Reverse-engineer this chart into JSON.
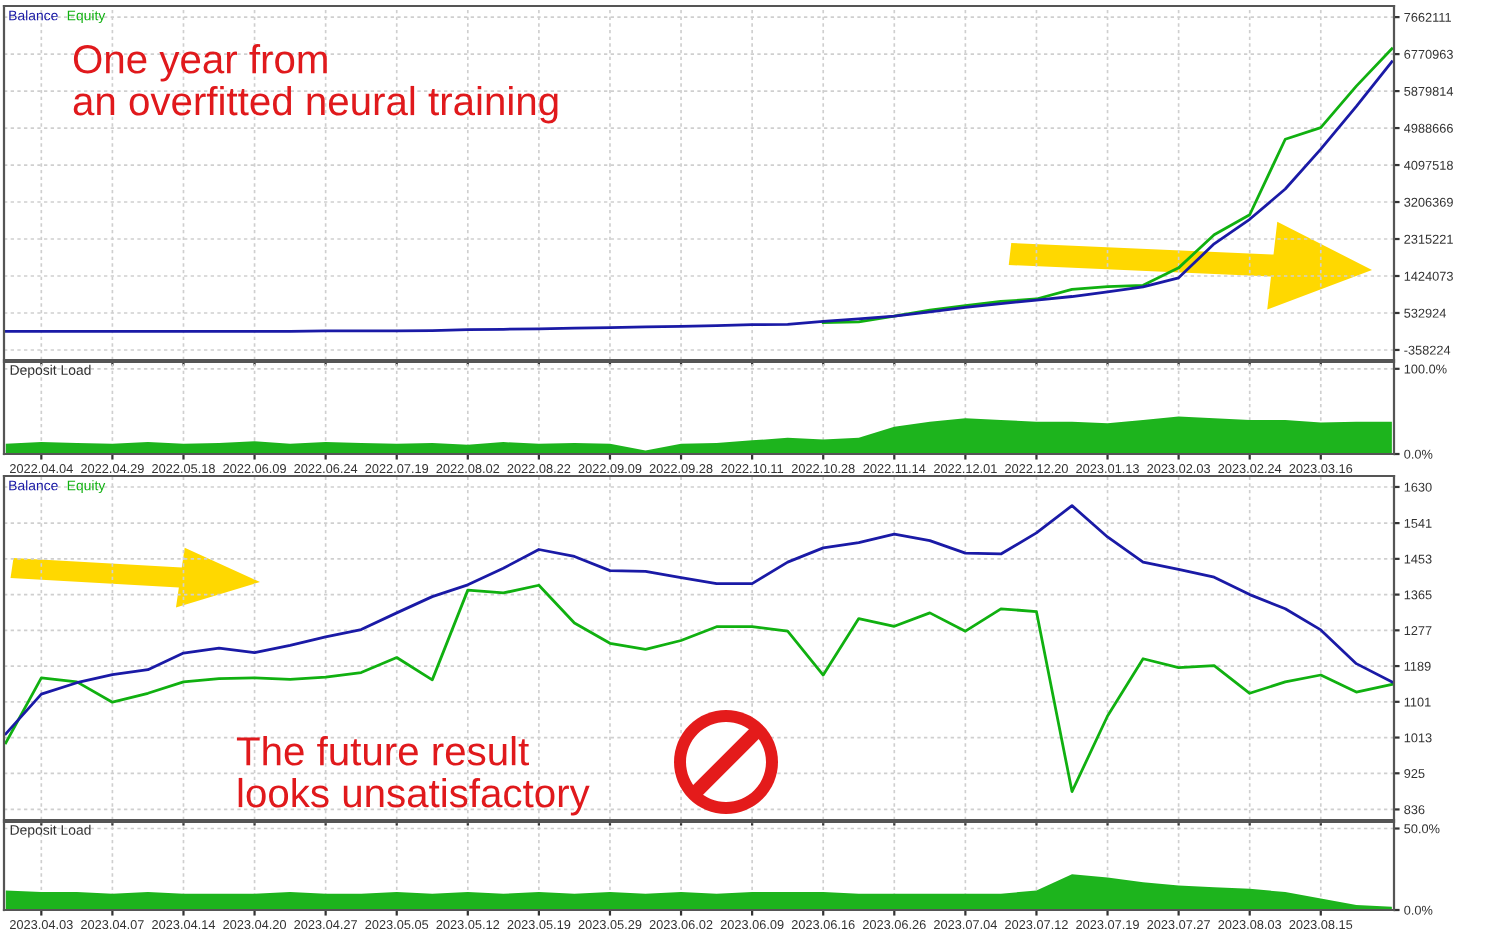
{
  "chart_data": [
    {
      "type": "line",
      "legend": "top left",
      "grid": true,
      "tick_labels": "y",
      "annotations": [
        "One year from\nan overfitted neural training"
      ],
      "categories": [
        null,
        "2022.04.04",
        null,
        "2022.04.29",
        null,
        "2022.05.18",
        null,
        "2022.06.09",
        null,
        "2022.06.24",
        null,
        "2022.07.19",
        null,
        "2022.08.02",
        null,
        "2022.08.22",
        null,
        "2022.09.09",
        null,
        "2022.09.28",
        null,
        "2022.10.11",
        null,
        "2022.10.28",
        null,
        "2022.11.14",
        null,
        "2022.12.01",
        null,
        "2022.12.20",
        null,
        "2023.01.13",
        null,
        "2023.02.03",
        null,
        "2023.02.24",
        null,
        "2023.03.16",
        null,
        null
      ],
      "ylim": [
        -600000,
        7930000
      ],
      "yticks": [
        -358224,
        532924,
        1424073,
        2315221,
        3206369,
        4097518,
        4988666,
        5879814,
        6770963,
        7662111
      ],
      "series": [
        {
          "name": "Equity",
          "color": "#10b010",
          "values": [
            null,
            null,
            null,
            null,
            null,
            null,
            null,
            null,
            null,
            null,
            null,
            null,
            null,
            null,
            null,
            null,
            null,
            null,
            null,
            null,
            null,
            null,
            null,
            300000,
            320000,
            460000,
            600000,
            710000,
            810000,
            870000,
            1100000,
            1170000,
            1200000,
            1620000,
            2420000,
            2900000,
            4720000,
            5000000,
            6000000,
            6900000
          ]
        },
        {
          "name": "Balance",
          "color": "#1a1aa6",
          "values": [
            90000,
            90000,
            90000,
            90000,
            90000,
            90000,
            90000,
            90000,
            90000,
            100000,
            100000,
            100000,
            110000,
            130000,
            140000,
            150000,
            170000,
            180000,
            200000,
            210000,
            230000,
            250000,
            260000,
            330000,
            390000,
            460000,
            560000,
            670000,
            760000,
            840000,
            930000,
            1040000,
            1160000,
            1380000,
            2200000,
            2790000,
            3520000,
            4480000,
            5510000,
            6590000
          ]
        }
      ]
    },
    {
      "type": "area",
      "title": "Deposit Load",
      "grid": true,
      "categories": [
        null,
        "2022.04.04",
        null,
        "2022.04.29",
        null,
        "2022.05.18",
        null,
        "2022.06.09",
        null,
        "2022.06.24",
        null,
        "2022.07.19",
        null,
        "2022.08.02",
        null,
        "2022.08.22",
        null,
        "2022.09.09",
        null,
        "2022.09.28",
        null,
        "2022.10.11",
        null,
        "2022.10.28",
        null,
        "2022.11.14",
        null,
        "2022.12.01",
        null,
        "2022.12.20",
        null,
        "2023.01.13",
        null,
        "2023.02.03",
        null,
        "2023.02.24",
        null,
        "2023.03.16",
        null,
        null
      ],
      "ylim": [
        0,
        108
      ],
      "yticks": [
        {
          "value": 0,
          "label": "0.0%"
        },
        {
          "value": 100,
          "label": "100.0%"
        }
      ],
      "series": [
        {
          "color": "#1db41d",
          "values": [
            12,
            14,
            13,
            12,
            14,
            12,
            13,
            15,
            12,
            14,
            13,
            12,
            13,
            11,
            14,
            12,
            13,
            12,
            4,
            12,
            13,
            16,
            19,
            17,
            19,
            32,
            38,
            42,
            40,
            38,
            38,
            36,
            40,
            44,
            42,
            40,
            40,
            37,
            38,
            38
          ]
        }
      ]
    },
    {
      "type": "line",
      "legend": "top left",
      "grid": true,
      "tick_labels": "y",
      "annotations": [
        "The future result\nlooks unsatisfactory"
      ],
      "categories": [
        null,
        "2023.04.03",
        null,
        "2023.04.07",
        null,
        "2023.04.14",
        null,
        "2023.04.20",
        null,
        "2023.04.27",
        null,
        "2023.05.05",
        null,
        "2023.05.12",
        null,
        "2023.05.19",
        null,
        "2023.05.29",
        null,
        "2023.06.02",
        null,
        "2023.06.09",
        null,
        "2023.06.16",
        null,
        "2023.06.26",
        null,
        "2023.07.04",
        null,
        "2023.07.12",
        null,
        "2023.07.19",
        null,
        "2023.07.27",
        null,
        "2023.08.03",
        null,
        "2023.08.15",
        null,
        null
      ],
      "ylim": [
        810,
        1657
      ],
      "yticks": [
        836,
        925,
        1013,
        1101,
        1189,
        1277,
        1365,
        1453,
        1541,
        1630
      ],
      "series": [
        {
          "name": "Equity",
          "color": "#10b010",
          "values": [
            1000,
            1160,
            1150,
            1100,
            1122,
            1150,
            1158,
            1160,
            1156,
            1162,
            1173,
            1210,
            1155,
            1376,
            1369,
            1388,
            1295,
            1245,
            1230,
            1252,
            1286,
            1286,
            1275,
            1167,
            1306,
            1287,
            1320,
            1275,
            1330,
            1323,
            880,
            1066,
            1207,
            1185,
            1190,
            1122,
            1150,
            1167,
            1125,
            1144
          ]
        },
        {
          "name": "Balance",
          "color": "#1a1aa6",
          "values": [
            1022,
            1120,
            1148,
            1168,
            1180,
            1221,
            1233,
            1222,
            1240,
            1261,
            1279,
            1320,
            1360,
            1389,
            1430,
            1476,
            1459,
            1424,
            1422,
            1407,
            1392,
            1392,
            1445,
            1480,
            1493,
            1514,
            1498,
            1467,
            1465,
            1517,
            1584,
            1507,
            1445,
            1427,
            1408,
            1365,
            1330,
            1278,
            1195,
            1150
          ]
        }
      ]
    },
    {
      "type": "area",
      "title": "Deposit Load",
      "grid": true,
      "categories": [
        null,
        "2023.04.03",
        null,
        "2023.04.07",
        null,
        "2023.04.14",
        null,
        "2023.04.20",
        null,
        "2023.04.27",
        null,
        "2023.05.05",
        null,
        "2023.05.12",
        null,
        "2023.05.19",
        null,
        "2023.05.29",
        null,
        "2023.06.02",
        null,
        "2023.06.09",
        null,
        "2023.06.16",
        null,
        "2023.06.26",
        null,
        "2023.07.04",
        null,
        "2023.07.12",
        null,
        "2023.07.19",
        null,
        "2023.07.27",
        null,
        "2023.08.03",
        null,
        "2023.08.15",
        null,
        null
      ],
      "ylim": [
        0,
        54
      ],
      "yticks": [
        {
          "value": 0,
          "label": "0.0%"
        },
        {
          "value": 50,
          "label": "50.0%"
        }
      ],
      "series": [
        {
          "color": "#1db41d",
          "values": [
            12,
            11,
            11,
            10,
            11,
            10,
            10,
            10,
            11,
            10,
            10,
            11,
            10,
            11,
            10,
            11,
            10,
            11,
            10,
            11,
            10,
            11,
            11,
            11,
            10,
            10,
            10,
            10,
            10,
            12,
            22,
            20,
            17,
            15,
            14,
            13,
            11,
            7,
            3,
            2
          ]
        }
      ]
    }
  ]
}
